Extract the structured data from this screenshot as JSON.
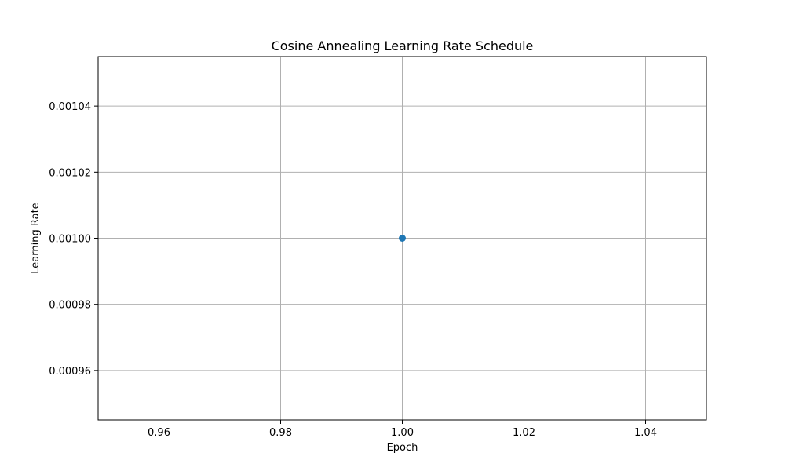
{
  "chart_data": {
    "type": "line",
    "title": "Cosine Annealing Learning Rate Schedule",
    "xlabel": "Epoch",
    "ylabel": "Learning Rate",
    "xlim": [
      0.95,
      1.05
    ],
    "ylim": [
      0.000945,
      0.001055
    ],
    "xticks": [
      0.96,
      0.98,
      1.0,
      1.02,
      1.04
    ],
    "xtick_labels": [
      "0.96",
      "0.98",
      "1.00",
      "1.02",
      "1.04"
    ],
    "yticks": [
      0.00096,
      0.00098,
      0.001,
      0.00102,
      0.00104
    ],
    "ytick_labels": [
      "0.00096",
      "0.00098",
      "0.00100",
      "0.00102",
      "0.00104"
    ],
    "grid": true,
    "series": [
      {
        "x": [
          1
        ],
        "y": [
          0.001
        ],
        "color": "#1f77b4",
        "marker": "circle"
      }
    ]
  }
}
